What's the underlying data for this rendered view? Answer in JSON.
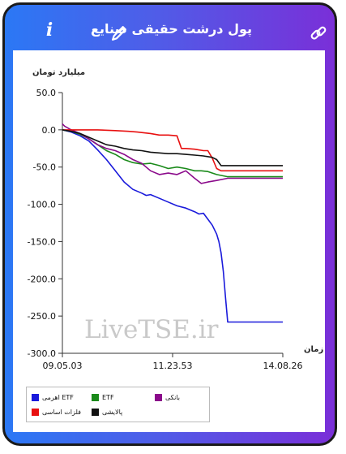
{
  "header": {
    "title": "پول درشت حقیقی صنایع",
    "info_icon_glyph": "i",
    "icons": [
      "info-icon",
      "pencil-icon",
      "link-icon"
    ]
  },
  "colors": {
    "frame_gradient_start": "#2b78f5",
    "frame_gradient_end": "#7a2fd8"
  },
  "watermark": "LiveTSE.ir",
  "chart_data": {
    "type": "line",
    "ylabel": "میلیارد تومان",
    "xlabel": "زمان",
    "ylim": [
      -300,
      50
    ],
    "yticks": [
      50,
      0,
      -50,
      -100,
      -150,
      -200,
      -250,
      -300
    ],
    "ytick_labels": [
      "50.0",
      "0.0",
      "-50.0",
      "-100.0",
      "-150.0",
      "-200.0",
      "-250.0",
      "-300.0"
    ],
    "xlim": [
      0,
      100
    ],
    "xticks": [
      0,
      50,
      100
    ],
    "xtick_labels": [
      "09.05.03",
      "11.23.53",
      "14.08.26"
    ],
    "legend_position": "bottom-left",
    "series": [
      {
        "name": "اهرمی ETF",
        "color": "#1a1adb",
        "x": [
          0,
          4,
          8,
          12,
          16,
          20,
          24,
          28,
          32,
          36,
          38,
          40,
          44,
          48,
          52,
          56,
          60,
          62,
          64,
          66,
          68,
          70,
          71,
          72,
          73,
          74,
          75,
          100
        ],
        "y": [
          0,
          -3,
          -8,
          -15,
          -27,
          -40,
          -55,
          -70,
          -80,
          -85,
          -88,
          -87,
          -92,
          -97,
          -102,
          -105,
          -110,
          -113,
          -112,
          -120,
          -128,
          -140,
          -150,
          -165,
          -190,
          -225,
          -258,
          -258
        ]
      },
      {
        "name": "ETF",
        "color": "#1a8a1a",
        "x": [
          0,
          4,
          8,
          12,
          16,
          20,
          24,
          28,
          32,
          36,
          40,
          44,
          48,
          52,
          56,
          60,
          63,
          66,
          70,
          75,
          100
        ],
        "y": [
          0,
          -2,
          -6,
          -12,
          -20,
          -28,
          -33,
          -40,
          -44,
          -46,
          -45,
          -48,
          -52,
          -50,
          -52,
          -55,
          -55,
          -56,
          -60,
          -63,
          -63
        ]
      },
      {
        "name": "بانکی",
        "color": "#8b0a8b",
        "x": [
          0,
          1,
          4,
          8,
          12,
          16,
          20,
          24,
          28,
          32,
          36,
          40,
          44,
          48,
          52,
          56,
          60,
          63,
          66,
          70,
          75,
          100
        ],
        "y": [
          8,
          5,
          0,
          -5,
          -12,
          -20,
          -25,
          -28,
          -33,
          -40,
          -45,
          -55,
          -60,
          -58,
          -60,
          -55,
          -65,
          -72,
          -70,
          -68,
          -65,
          -65
        ]
      },
      {
        "name": "فلزات اساسی",
        "color": "#e81010",
        "x": [
          0,
          8,
          16,
          24,
          30,
          34,
          40,
          44,
          48,
          52,
          54,
          56,
          60,
          64,
          66,
          68,
          70,
          72,
          75,
          100
        ],
        "y": [
          0,
          0,
          0,
          -1,
          -2,
          -3,
          -5,
          -7,
          -7,
          -8,
          -25,
          -25,
          -26,
          -28,
          -28,
          -38,
          -52,
          -55,
          -55,
          -55
        ]
      },
      {
        "name": "پالایشی",
        "color": "#111111",
        "x": [
          0,
          4,
          8,
          12,
          16,
          20,
          24,
          28,
          32,
          36,
          40,
          44,
          48,
          52,
          56,
          60,
          64,
          68,
          70,
          72,
          75,
          100
        ],
        "y": [
          0,
          -2,
          -5,
          -10,
          -15,
          -20,
          -22,
          -25,
          -27,
          -28,
          -30,
          -31,
          -32,
          -32,
          -33,
          -34,
          -35,
          -37,
          -40,
          -48,
          -48,
          -48
        ]
      }
    ]
  }
}
